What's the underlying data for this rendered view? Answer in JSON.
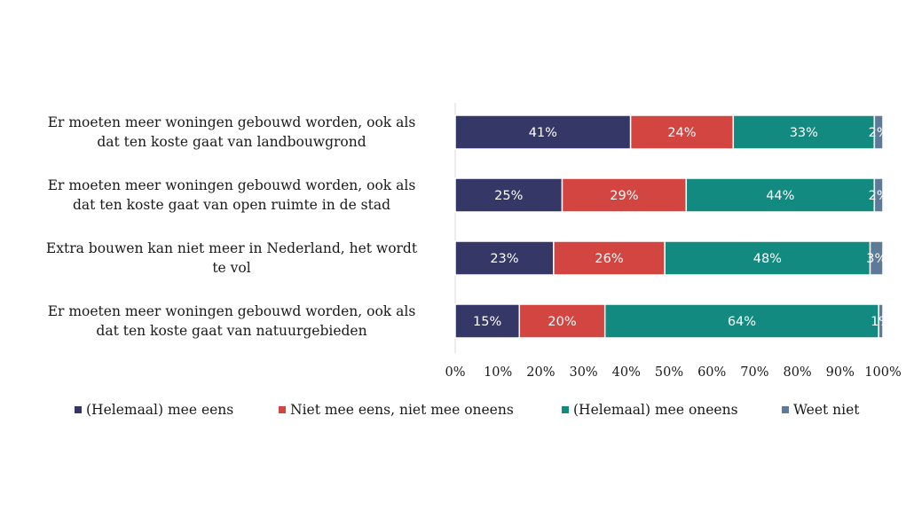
{
  "chart_data": {
    "type": "bar",
    "orientation": "horizontal",
    "stacked": true,
    "categories": [
      "Er moeten meer woningen gebouwd worden, ook als dat ten koste gaat van landbouwgrond",
      "Er moeten meer woningen gebouwd worden, ook als dat ten koste gaat van open ruimte in de stad",
      "Extra bouwen kan niet meer in Nederland, het wordt te vol",
      "Er moeten meer woningen gebouwd worden, ook als dat ten koste gaat van natuurgebieden"
    ],
    "category_lines": [
      [
        "Er moeten meer woningen gebouwd worden, ook als",
        "dat ten koste gaat van landbouwgrond"
      ],
      [
        "Er moeten meer woningen gebouwd worden, ook als",
        "dat ten koste gaat van open ruimte in de stad"
      ],
      [
        "Extra bouwen kan niet meer in Nederland, het wordt",
        "te vol"
      ],
      [
        "Er moeten meer woningen gebouwd worden, ook als",
        "dat ten koste gaat van natuurgebieden"
      ]
    ],
    "series": [
      {
        "name": "(Helemaal) mee eens",
        "color": "#353766",
        "values": [
          41,
          25,
          23,
          15
        ],
        "labels": [
          "41%",
          "25%",
          "23%",
          "15%"
        ]
      },
      {
        "name": "Niet mee eens, niet mee oneens",
        "color": "#d24540",
        "values": [
          24,
          29,
          26,
          20
        ],
        "labels": [
          "24%",
          "29%",
          "26%",
          "20%"
        ]
      },
      {
        "name": "(Helemaal) mee oneens",
        "color": "#138a80",
        "values": [
          33,
          44,
          48,
          64
        ],
        "labels": [
          "33%",
          "44%",
          "48%",
          "64%"
        ]
      },
      {
        "name": "Weet niet",
        "color": "#5d7a99",
        "values": [
          2,
          2,
          3,
          1
        ],
        "labels": [
          "2%",
          "2%",
          "3%",
          "1%"
        ]
      }
    ],
    "xlim": [
      0,
      100
    ],
    "x_ticks": [
      "0%",
      "10%",
      "20%",
      "30%",
      "40%",
      "50%",
      "60%",
      "70%",
      "80%",
      "90%",
      "100%"
    ],
    "grid": false,
    "legend_position": "bottom"
  }
}
